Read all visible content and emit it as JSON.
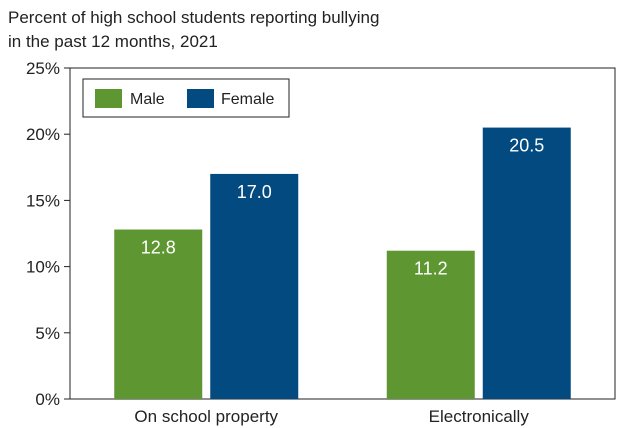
{
  "chart_data": {
    "type": "bar",
    "title_lines": [
      "Percent of high school students reporting bullying",
      "in the past 12 months, 2021"
    ],
    "categories": [
      "On school property",
      "Electronically"
    ],
    "series": [
      {
        "name": "Male",
        "color": "#5e9732",
        "values": [
          12.8,
          11.2
        ],
        "labels": [
          "12.8",
          "11.2"
        ]
      },
      {
        "name": "Female",
        "color": "#034a80",
        "values": [
          17.0,
          20.5
        ],
        "labels": [
          "17.0",
          "20.5"
        ]
      }
    ],
    "ylim": [
      0,
      25
    ],
    "yticks": [
      0,
      5,
      10,
      15,
      20,
      25
    ],
    "ytick_labels": [
      "0%",
      "5%",
      "10%",
      "15%",
      "20%",
      "25%"
    ],
    "legend_position": "top-left",
    "grid": false
  }
}
